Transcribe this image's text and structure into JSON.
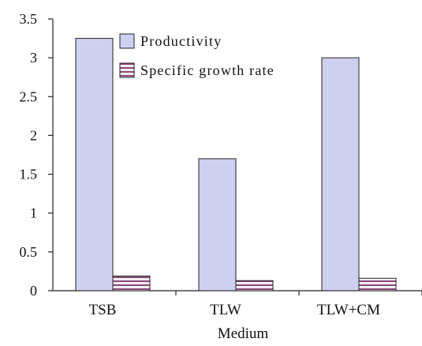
{
  "chart_data": {
    "type": "bar",
    "title": "",
    "xlabel": "Medium",
    "ylabel": "",
    "categories": [
      "TSB",
      "TLW",
      "TLW+CM"
    ],
    "ylim": [
      0,
      3.5
    ],
    "yticks": [
      "0",
      "0.5",
      "1",
      "1.5",
      "2",
      "2.5",
      "3",
      "3.5"
    ],
    "grid": false,
    "legend_position": "top-center",
    "series": [
      {
        "name": "Productivity",
        "values": [
          3.25,
          1.7,
          3.0
        ],
        "color": "#cfcfef",
        "pattern": "solid"
      },
      {
        "name": "Specific growth rate",
        "values": [
          0.19,
          0.13,
          0.16
        ],
        "color": "#8a4a78",
        "pattern": "horizontal-stripes"
      }
    ]
  }
}
